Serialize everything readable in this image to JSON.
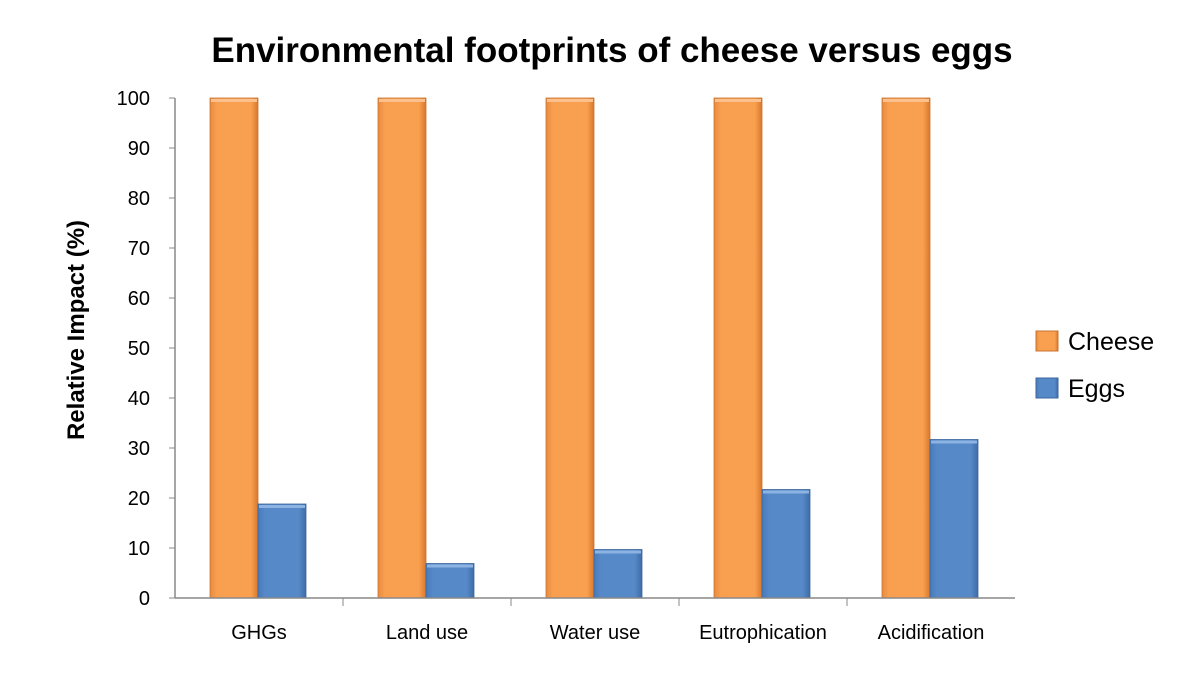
{
  "chart_data": {
    "type": "bar",
    "title": "Environmental footprints of cheese versus eggs",
    "xlabel": "",
    "ylabel": "Relative Impact (%)",
    "ylim": [
      0,
      100
    ],
    "yticks": [
      0,
      10,
      20,
      30,
      40,
      50,
      60,
      70,
      80,
      90,
      100
    ],
    "categories": [
      "GHGs",
      "Land use",
      "Water use",
      "Eutrophication",
      "Acidification"
    ],
    "series": [
      {
        "name": "Cheese",
        "color": "#F79646",
        "values": [
          100,
          100,
          100,
          100,
          100
        ]
      },
      {
        "name": "Eggs",
        "color": "#4F81BD",
        "values": [
          18.8,
          6.9,
          9.7,
          21.7,
          31.7
        ]
      }
    ],
    "legend": "right",
    "grid": false
  }
}
